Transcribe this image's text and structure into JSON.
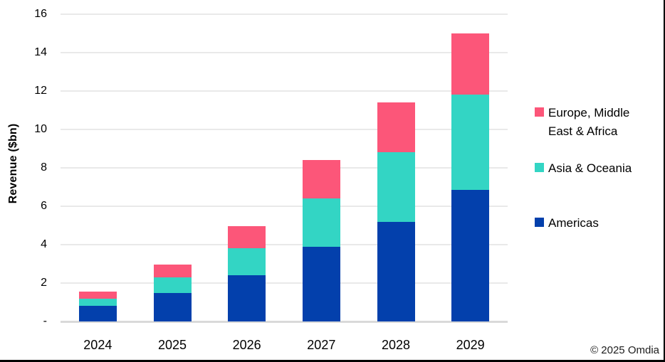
{
  "meta": {
    "copyright": "© 2025 Omdia"
  },
  "chart_data": {
    "type": "bar",
    "stacked": true,
    "title": "",
    "xlabel": "",
    "ylabel": "Revenue ($bn)",
    "categories": [
      "2024",
      "2025",
      "2026",
      "2027",
      "2028",
      "2029"
    ],
    "series": [
      {
        "name": "Americas",
        "color": "#0340AC",
        "values": [
          0.8,
          1.5,
          2.4,
          3.9,
          5.2,
          6.85
        ]
      },
      {
        "name": "Asia & Oceania",
        "color": "#33D5C4",
        "values": [
          0.4,
          0.8,
          1.4,
          2.5,
          3.6,
          4.95
        ]
      },
      {
        "name": "Europe, Middle East & Africa",
        "color": "#FC5679",
        "values": [
          0.35,
          0.65,
          1.15,
          2.0,
          2.6,
          3.2
        ]
      }
    ],
    "totals": [
      1.55,
      2.95,
      4.95,
      8.4,
      11.4,
      15.0
    ],
    "ylim": [
      0,
      16
    ],
    "ytick_step": 2,
    "ytick_labels": [
      "-",
      "2",
      "4",
      "6",
      "8",
      "10",
      "12",
      "14",
      "16"
    ],
    "grid": true,
    "gridline_color": "#e9e9e9",
    "baseline_color": "#d9d9d9",
    "legend_position": "right"
  },
  "legend": {
    "items": [
      {
        "label": "Europe, Middle East & Africa",
        "color": "#FC5679"
      },
      {
        "label": "Asia & Oceania",
        "color": "#33D5C4"
      },
      {
        "label": "Americas",
        "color": "#0340AC"
      }
    ]
  }
}
